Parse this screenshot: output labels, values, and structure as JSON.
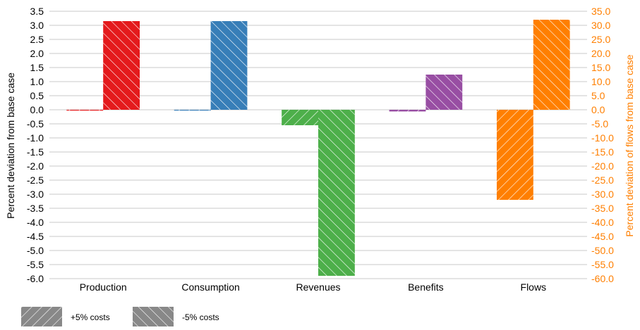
{
  "chart_data": {
    "type": "bar",
    "categories": [
      "Production",
      "Consumption",
      "Revenues",
      "Benefits",
      "Flows"
    ],
    "category_colors": [
      "#e41a1c",
      "#377eb8",
      "#4daf4a",
      "#984ea3",
      "#ff7f00"
    ],
    "series": [
      {
        "name": "+5% costs",
        "hatch": "forward-diagonal",
        "values": [
          -0.02,
          -0.03,
          -0.55,
          -0.06,
          -3.2
        ]
      },
      {
        "name": "-5% costs",
        "hatch": "back-diagonal",
        "values": [
          3.15,
          3.15,
          -5.9,
          1.25,
          3.2
        ]
      }
    ],
    "left_axis": {
      "label": "Percent deviation from base case",
      "ylim": [
        -6.0,
        3.5
      ],
      "ticks": [
        "3.5",
        "3.0",
        "2.5",
        "2.0",
        "1.5",
        "1.0",
        "0.5",
        "0.0",
        "-0.5",
        "-1.0",
        "-1.5",
        "-2.0",
        "-2.5",
        "-3.0",
        "-3.5",
        "-4.0",
        "-4.5",
        "-5.0",
        "-5.5",
        "-6.0"
      ]
    },
    "right_axis": {
      "label": "Percent deviation of flows from base case",
      "color": "#ff7f00",
      "ylim": [
        -60.0,
        35.0
      ],
      "ticks": [
        "35.0",
        "30.0",
        "25.0",
        "20.0",
        "15.0",
        "10.0",
        "5.0",
        "0.0",
        "-5.0",
        "-10.0",
        "-15.0",
        "-20.0",
        "-25.0",
        "-30.0",
        "-35.0",
        "-40.0",
        "-45.0",
        "-50.0",
        "-55.0",
        "-60.0"
      ]
    },
    "grid": true,
    "legend": {
      "position": "bottom-left",
      "swatch_color": "#888888",
      "items": [
        "+5% costs",
        "-5% costs"
      ]
    }
  }
}
